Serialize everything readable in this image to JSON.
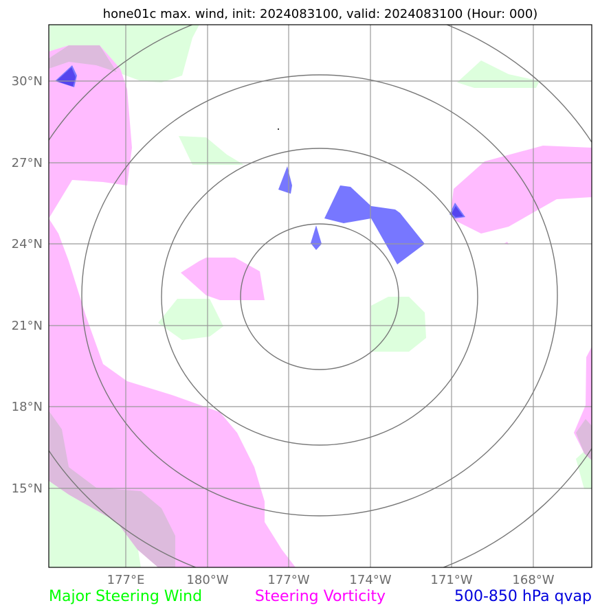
{
  "title": "hone01c max. wind, init: 2024083100, valid: 2024083100 (Hour: 000)",
  "lat_labels": [
    "30°N",
    "27°N",
    "24°N",
    "21°N",
    "18°N",
    "15°N"
  ],
  "lon_labels": [
    "177°E",
    "180°W",
    "177°W",
    "174°W",
    "171°W",
    "168°W"
  ],
  "legend": {
    "wind": "Major Steering Wind",
    "vorticity": "Steering Vorticity",
    "qvap": "500-850 hPa qvap"
  },
  "colors": {
    "wind": "#00ff00",
    "vorticity": "#ff00ff",
    "qvap": "#0000dd",
    "wind_fill": "#ddffdd",
    "vorticity_fill": "#ffbbff",
    "qvap_fill": "#7777ff",
    "grid": "#999999",
    "range_rings": "#777777"
  }
}
